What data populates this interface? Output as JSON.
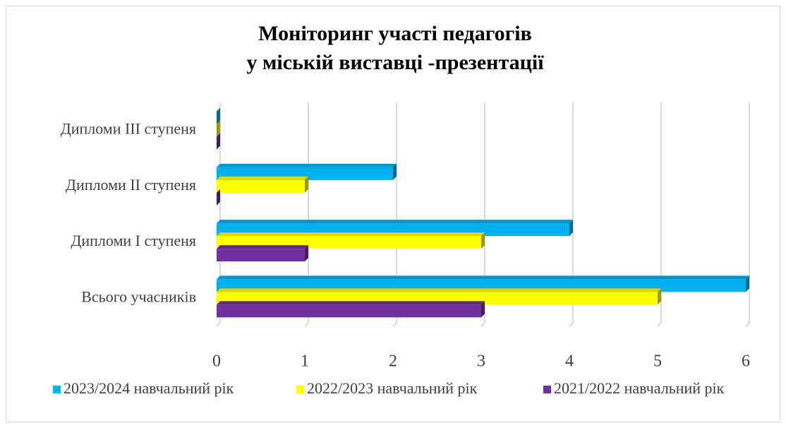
{
  "chart_data": {
    "type": "bar",
    "orientation": "horizontal",
    "title": [
      "Моніторинг участі педагогів",
      "у міській виставці -презентації"
    ],
    "categories": [
      "Всього учасників",
      "Дипломи І ступеня",
      "Дипломи ІІ ступеня",
      "Дипломи ІІІ ступеня"
    ],
    "series": [
      {
        "name": "2023/2024 навчальний рік",
        "color": "#00b0f0",
        "values": [
          6,
          4,
          2,
          0
        ]
      },
      {
        "name": "2022/2023 навчальний рік",
        "color": "#ffff00",
        "values": [
          5,
          3,
          1,
          0
        ]
      },
      {
        "name": "2021/2022 навчальний рік",
        "color": "#7030a0",
        "values": [
          3,
          1,
          0,
          0
        ]
      }
    ],
    "xlim": [
      0,
      6
    ],
    "xticks": [
      0,
      1,
      2,
      3,
      4,
      5,
      6
    ],
    "grid": true,
    "legend": "bottom"
  }
}
